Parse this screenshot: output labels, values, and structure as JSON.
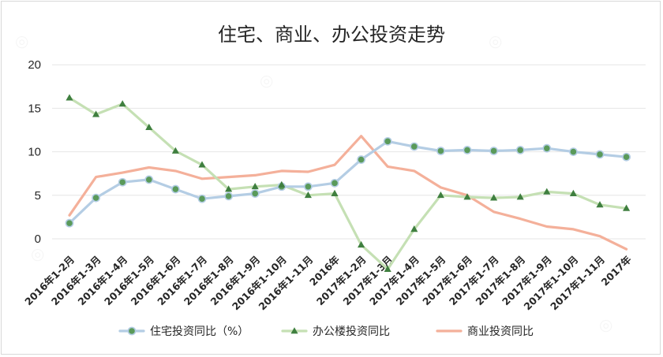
{
  "chart_data": {
    "type": "line",
    "title": "住宅、商业、办公投资走势",
    "xlabel": "",
    "ylabel": "",
    "ylim": [
      -5,
      20
    ],
    "yticks": [
      0,
      5,
      10,
      15,
      20
    ],
    "grid": true,
    "legend_position": "bottom",
    "categories": [
      "2016年1-2月",
      "2016年1-3月",
      "2016年1-4月",
      "2016年1-5月",
      "2016年1-6月",
      "2016年1-7月",
      "2016年1-8月",
      "2016年1-9月",
      "2016年1-10月",
      "2016年1-11月",
      "2016年",
      "2017年1-2月",
      "2017年1-3月",
      "2017年1-4月",
      "2017年1-5月",
      "2017年1-6月",
      "2017年1-7月",
      "2017年1-8月",
      "2017年1-9月",
      "2017年1-10月",
      "2017年1-11月",
      "2017年"
    ],
    "series": [
      {
        "name": "住宅投资同比（%）",
        "color": "#b4cde4",
        "marker": "circle",
        "marker_color": "#5a9a5a",
        "values": [
          1.8,
          4.7,
          6.5,
          6.8,
          5.7,
          4.6,
          4.9,
          5.2,
          6.0,
          6.0,
          6.4,
          9.1,
          11.2,
          10.6,
          10.1,
          10.2,
          10.1,
          10.2,
          10.4,
          10.0,
          9.7,
          9.4
        ]
      },
      {
        "name": "办公楼投资同比",
        "color": "#c5e0b4",
        "marker": "triangle",
        "marker_color": "#3f7f3f",
        "values": [
          16.2,
          14.3,
          15.5,
          12.8,
          10.1,
          8.5,
          5.7,
          6.0,
          6.2,
          5.0,
          5.2,
          -0.7,
          -3.5,
          1.1,
          5.0,
          4.8,
          4.7,
          4.8,
          5.4,
          5.2,
          3.9,
          3.5
        ]
      },
      {
        "name": "商业投资同比",
        "color": "#f4b09a",
        "marker": "none",
        "values": [
          2.7,
          7.1,
          7.6,
          8.2,
          7.8,
          6.9,
          7.1,
          7.3,
          7.8,
          7.7,
          8.5,
          11.8,
          8.3,
          7.8,
          5.9,
          5.0,
          3.1,
          2.3,
          1.4,
          1.1,
          0.3,
          -1.2
        ]
      }
    ]
  }
}
